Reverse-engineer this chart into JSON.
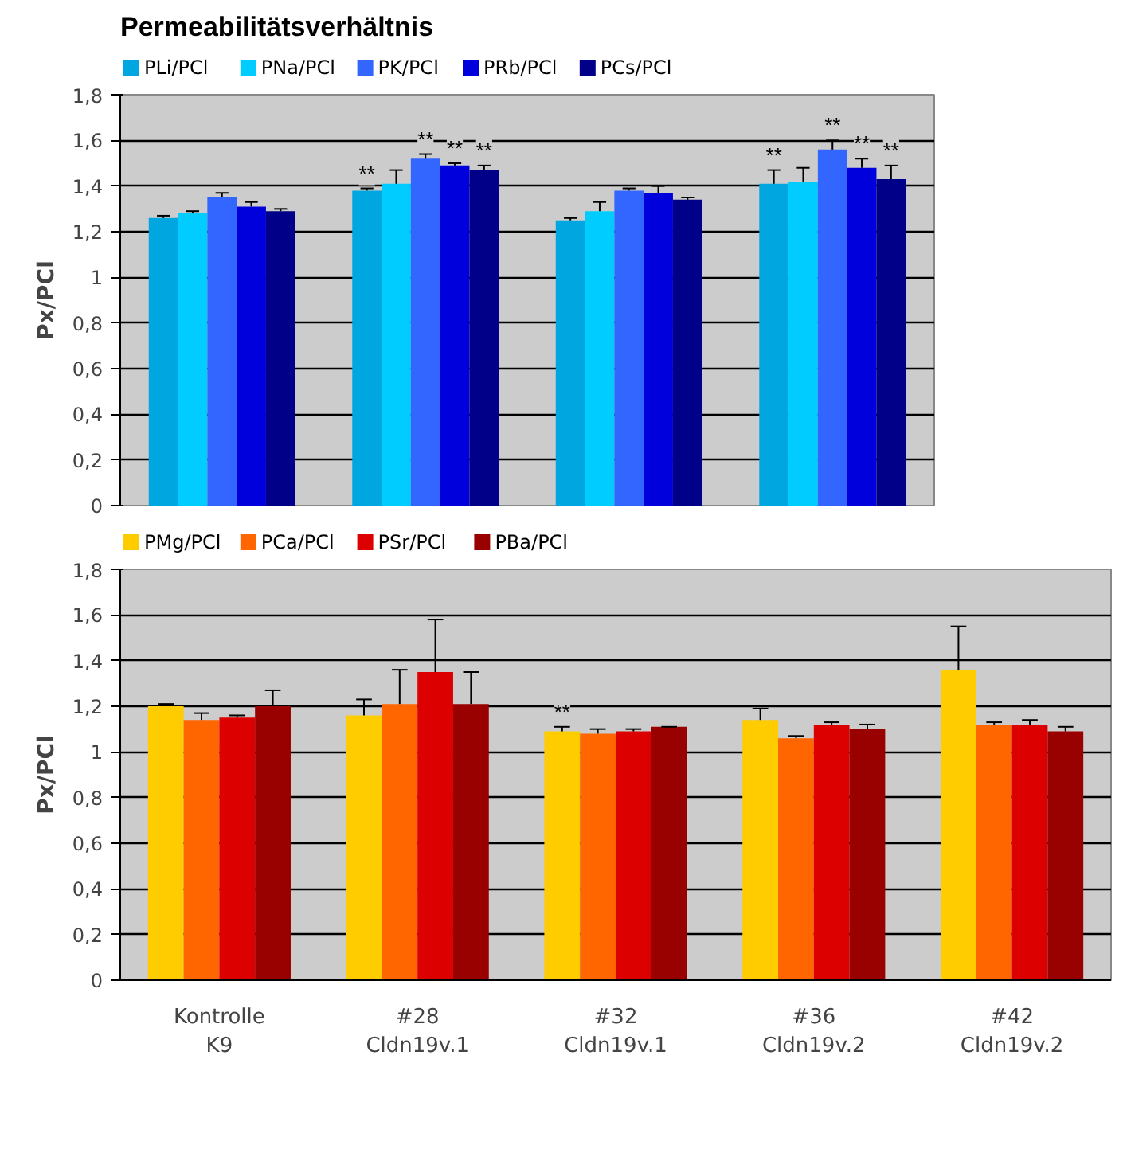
{
  "chart_data": [
    {
      "type": "bar",
      "title": "Permeabilitätsverhältnis",
      "ylabel": "Px/PCl",
      "categories": [
        null,
        null,
        null,
        null
      ],
      "ylim": [
        0,
        1.8
      ],
      "yticks": [
        0,
        {
          "value": 0.2,
          "label": "0,2"
        },
        {
          "value": 0.4,
          "label": "0,4"
        },
        {
          "value": 0.6,
          "label": "0,6"
        },
        {
          "value": 0.8,
          "label": "0,8"
        },
        1,
        {
          "value": 1.2,
          "label": "1,2"
        },
        {
          "value": 1.4,
          "label": "1,4"
        },
        {
          "value": 1.6,
          "label": "1,6"
        },
        {
          "value": 1.8,
          "label": "1,8"
        }
      ],
      "grid": "y",
      "legend": "top",
      "series": [
        {
          "name": "PLi/PCl",
          "color": "#00a6e0",
          "values": [
            1.26,
            1.38,
            1.25,
            1.41
          ],
          "errors": [
            [
              1.26,
              1.27
            ],
            [
              1.38,
              1.39
            ],
            [
              1.25,
              1.26
            ],
            [
              1.41,
              1.47
            ]
          ],
          "value_labels": [
            null,
            "**",
            null,
            "**"
          ]
        },
        {
          "name": "PNa/PCl",
          "color": "#00ccff",
          "values": [
            1.28,
            1.41,
            1.29,
            1.42
          ],
          "errors": [
            [
              1.28,
              1.29
            ],
            [
              1.41,
              1.47
            ],
            [
              1.29,
              1.33
            ],
            [
              1.42,
              1.48
            ]
          ],
          "value_labels": [
            null,
            null,
            null,
            null
          ]
        },
        {
          "name": "PK/PCl",
          "color": "#3366ff",
          "values": [
            1.35,
            1.52,
            1.38,
            1.56
          ],
          "errors": [
            [
              1.35,
              1.37
            ],
            [
              1.52,
              1.54
            ],
            [
              1.38,
              1.39
            ],
            [
              1.56,
              1.6
            ]
          ],
          "value_labels": [
            null,
            "**",
            null,
            "**"
          ]
        },
        {
          "name": "PRb/PCl",
          "color": "#0000dd",
          "values": [
            1.31,
            1.49,
            1.37,
            1.48
          ],
          "errors": [
            [
              1.31,
              1.33
            ],
            [
              1.49,
              1.5
            ],
            [
              1.37,
              1.4
            ],
            [
              1.48,
              1.52
            ]
          ],
          "value_labels": [
            null,
            "**",
            null,
            "**"
          ]
        },
        {
          "name": "PCs/PCl",
          "color": "#000088",
          "values": [
            1.29,
            1.47,
            1.34,
            1.43
          ],
          "errors": [
            [
              1.29,
              1.3
            ],
            [
              1.47,
              1.49
            ],
            [
              1.34,
              1.35
            ],
            [
              1.43,
              1.49
            ]
          ],
          "value_labels": [
            null,
            "**",
            null,
            "**"
          ]
        }
      ]
    },
    {
      "type": "bar",
      "ylabel": "Px/PCl",
      "categories": [
        "Kontrolle K9",
        "#28 Cldn19v.1",
        "#32 Cldn19v.1",
        "#36 Cldn19v.2",
        "#42 Cldn19v.2"
      ],
      "ylim": [
        0,
        1.8
      ],
      "yticks": [
        0,
        {
          "value": 0.2,
          "label": "0,2"
        },
        {
          "value": 0.4,
          "label": "0,4"
        },
        {
          "value": 0.6,
          "label": "0,6"
        },
        {
          "value": 0.8,
          "label": "0,8"
        },
        1,
        {
          "value": 1.2,
          "label": "1,2"
        },
        {
          "value": 1.4,
          "label": "1,4"
        },
        {
          "value": 1.6,
          "label": "1,6"
        },
        {
          "value": 1.8,
          "label": "1,8"
        }
      ],
      "grid": "y",
      "legend": "top",
      "series": [
        {
          "name": "PMg/PCl",
          "color": "#ffcc00",
          "values": [
            1.2,
            1.16,
            1.09,
            1.14,
            1.36
          ],
          "errors": [
            [
              1.2,
              1.21
            ],
            [
              1.16,
              1.23
            ],
            [
              1.09,
              1.11
            ],
            [
              1.14,
              1.19
            ],
            [
              1.36,
              1.55
            ]
          ],
          "value_labels": [
            null,
            null,
            "**",
            null,
            null
          ]
        },
        {
          "name": "PCa/PCl",
          "color": "#ff6600",
          "values": [
            1.14,
            1.21,
            1.08,
            1.06,
            1.12
          ],
          "errors": [
            [
              1.14,
              1.17
            ],
            [
              1.21,
              1.36
            ],
            [
              1.08,
              1.1
            ],
            [
              1.06,
              1.07
            ],
            [
              1.12,
              1.13
            ]
          ],
          "value_labels": [
            null,
            null,
            null,
            null,
            null
          ]
        },
        {
          "name": "PSr/PCl",
          "color": "#dd0000",
          "values": [
            1.15,
            1.35,
            1.09,
            1.12,
            1.12
          ],
          "errors": [
            [
              1.15,
              1.16
            ],
            [
              1.35,
              1.58
            ],
            [
              1.09,
              1.1
            ],
            [
              1.12,
              1.13
            ],
            [
              1.12,
              1.14
            ]
          ],
          "value_labels": [
            null,
            null,
            null,
            null,
            null
          ]
        },
        {
          "name": "PBa/PCl",
          "color": "#990000",
          "values": [
            1.2,
            1.21,
            1.11,
            1.1,
            1.09
          ],
          "errors": [
            [
              1.2,
              1.27
            ],
            [
              1.21,
              1.35
            ],
            [
              1.11,
              1.11
            ],
            [
              1.1,
              1.12
            ],
            [
              1.09,
              1.11
            ]
          ],
          "value_labels": [
            null,
            null,
            null,
            null,
            null
          ]
        }
      ]
    }
  ]
}
